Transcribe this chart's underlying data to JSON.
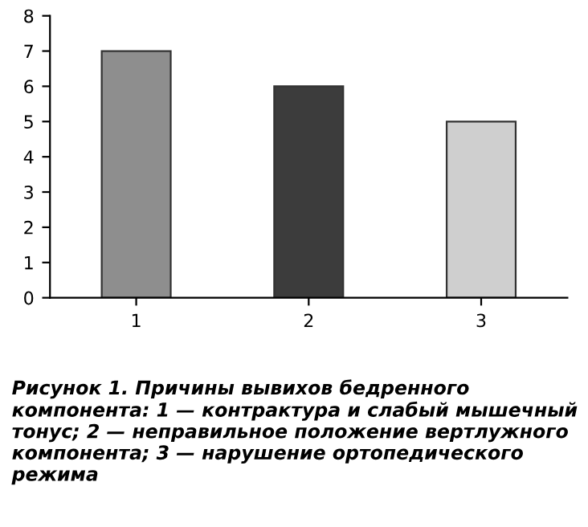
{
  "chart_data": {
    "type": "bar",
    "categories": [
      "1",
      "2",
      "3"
    ],
    "values": [
      7,
      6,
      5
    ],
    "colors": [
      "#8e8e8e",
      "#3c3c3c",
      "#cfcfcf"
    ],
    "ylim": [
      0,
      8
    ],
    "yticks": [
      0,
      1,
      2,
      3,
      4,
      5,
      6,
      7,
      8
    ],
    "grid": false,
    "legend": false,
    "annotations": [
      "Рисунок 1. Причины вывихов бедренного компонента: 1 — контрактура и слабый мышечный тонус; 2 — неправильное положение вертлужного компонента; 3 — нарушение ортопедического режима"
    ]
  }
}
